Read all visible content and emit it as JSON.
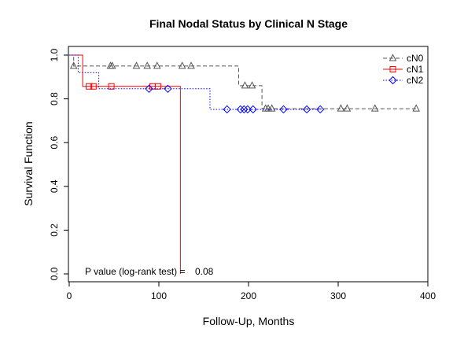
{
  "chart_data": {
    "type": "line",
    "subtype": "kaplan-meier-step",
    "title": "Final Nodal Status by Clinical N Stage",
    "xlabel": "Follow-Up, Months",
    "ylabel": "Survival Function",
    "xlim": [
      0,
      400
    ],
    "ylim": [
      0,
      1
    ],
    "xticks": [
      0,
      100,
      200,
      300,
      400
    ],
    "yticks": [
      0.0,
      0.2,
      0.4,
      0.6,
      0.8,
      1.0
    ],
    "xtick_labels": [
      "0",
      "100",
      "200",
      "300",
      "400"
    ],
    "ytick_labels": [
      "0.0",
      "0.2",
      "0.4",
      "0.6",
      "0.8",
      "1.0"
    ],
    "grid": false,
    "legend_position": "top-right",
    "annotation": {
      "label": "P value (log-rank test) =",
      "value": "0.08"
    },
    "series": [
      {
        "name": "cN0",
        "color": "#555555",
        "line_style": "dashed",
        "marker": "triangle",
        "steps": [
          [
            0,
            1.0
          ],
          [
            5,
            0.95
          ],
          [
            189,
            0.86
          ],
          [
            215,
            0.755
          ],
          [
            388,
            0.755
          ]
        ],
        "censor": [
          [
            5,
            0.95
          ],
          [
            46,
            0.95
          ],
          [
            48,
            0.95
          ],
          [
            75,
            0.95
          ],
          [
            87,
            0.95
          ],
          [
            98,
            0.95
          ],
          [
            126,
            0.95
          ],
          [
            136,
            0.95
          ],
          [
            196,
            0.86
          ],
          [
            204,
            0.86
          ],
          [
            219,
            0.755
          ],
          [
            222,
            0.755
          ],
          [
            226,
            0.755
          ],
          [
            303,
            0.755
          ],
          [
            310,
            0.755
          ],
          [
            341,
            0.755
          ],
          [
            387,
            0.755
          ]
        ]
      },
      {
        "name": "cN1",
        "color": "#ff0000",
        "line_style": "solid",
        "marker": "square",
        "steps": [
          [
            0,
            1.0
          ],
          [
            15,
            0.857
          ],
          [
            124,
            0.0
          ]
        ],
        "censor": [
          [
            22,
            0.857
          ],
          [
            27,
            0.857
          ],
          [
            47,
            0.857
          ],
          [
            93,
            0.857
          ],
          [
            99,
            0.857
          ]
        ]
      },
      {
        "name": "cN2",
        "color": "#0000ff",
        "line_style": "dotted",
        "marker": "diamond",
        "steps": [
          [
            0,
            1.0
          ],
          [
            10,
            0.92
          ],
          [
            33,
            0.846
          ],
          [
            157,
            0.752
          ],
          [
            281,
            0.752
          ]
        ],
        "censor": [
          [
            89,
            0.846
          ],
          [
            110,
            0.846
          ],
          [
            176,
            0.752
          ],
          [
            191,
            0.752
          ],
          [
            195,
            0.752
          ],
          [
            199,
            0.752
          ],
          [
            205,
            0.752
          ],
          [
            239,
            0.752
          ],
          [
            265,
            0.752
          ],
          [
            280,
            0.752
          ]
        ]
      }
    ]
  }
}
